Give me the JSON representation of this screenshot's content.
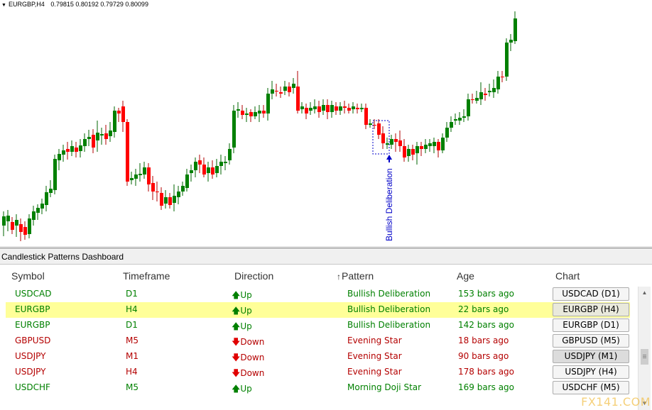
{
  "chart": {
    "symbol": "EURGBP,H4",
    "ohlc": "0.79815 0.80192 0.79729 0.80099",
    "bull_color": "#008000",
    "bear_color": "#ff0000",
    "pattern_label": "Bullish Deliberation",
    "pattern_label_color": "#0000c8"
  },
  "panel": {
    "title": "Candlestick Patterns Dashboard",
    "headers": {
      "symbol": "Symbol",
      "timeframe": "Timeframe",
      "direction": "Direction",
      "pattern": "Pattern",
      "age": "Age",
      "chart": "Chart"
    },
    "up_color": "#008000",
    "down_color": "#b40000",
    "highlight_color": "#ffff99",
    "rows": [
      {
        "symbol": "USDCAD",
        "timeframe": "D1",
        "direction": "Up",
        "pattern": "Bullish Deliberation",
        "age": "153 bars ago",
        "chart": "USDCAD (D1)"
      },
      {
        "symbol": "EURGBP",
        "timeframe": "H4",
        "direction": "Up",
        "pattern": "Bullish Deliberation",
        "age": "22 bars ago",
        "chart": "EURGBP (H4)"
      },
      {
        "symbol": "EURGBP",
        "timeframe": "D1",
        "direction": "Up",
        "pattern": "Bullish Deliberation",
        "age": "142 bars ago",
        "chart": "EURGBP (D1)"
      },
      {
        "symbol": "GBPUSD",
        "timeframe": "M5",
        "direction": "Down",
        "pattern": "Evening Star",
        "age": "18 bars ago",
        "chart": "GBPUSD (M5)"
      },
      {
        "symbol": "USDJPY",
        "timeframe": "M1",
        "direction": "Down",
        "pattern": "Evening Star",
        "age": "90 bars ago",
        "chart": "USDJPY (M1)"
      },
      {
        "symbol": "USDJPY",
        "timeframe": "H4",
        "direction": "Down",
        "pattern": "Evening Star",
        "age": "178 bars ago",
        "chart": "USDJPY (H4)"
      },
      {
        "symbol": "USDCHF",
        "timeframe": "M5",
        "direction": "Up",
        "pattern": "Morning Doji Star",
        "age": "169 bars ago",
        "chart": "USDCHF (M5)"
      }
    ]
  },
  "watermark": "FX141.COM"
}
